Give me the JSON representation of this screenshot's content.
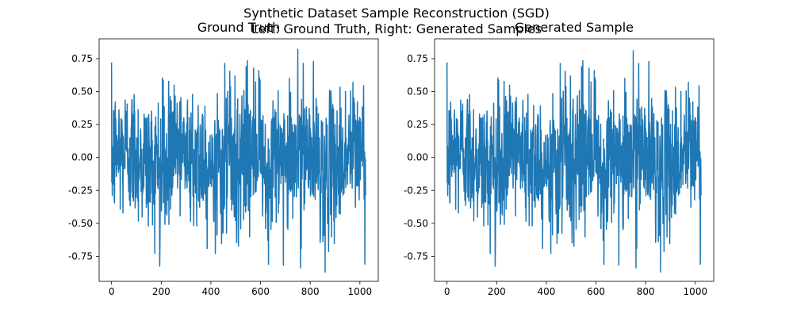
{
  "figure": {
    "suptitle_line1": "Synthetic Dataset Sample Reconstruction (SGD)",
    "suptitle_line2": "Left: Ground Truth, Right: Generated Samples"
  },
  "chart_data": [
    {
      "type": "line",
      "title": "Ground Truth",
      "xlabel": "",
      "ylabel": "",
      "x_ticks": [
        0,
        200,
        400,
        600,
        800,
        1000
      ],
      "y_ticks": [
        -0.75,
        -0.5,
        -0.25,
        0.0,
        0.25,
        0.5,
        0.75
      ],
      "xlim": [
        -50,
        1074
      ],
      "ylim": [
        -0.94,
        0.9
      ],
      "series_color": "#1f77b4",
      "x_range": [
        0,
        1023
      ],
      "n_points": 1024,
      "y_observed_min": -0.87,
      "y_observed_max": 0.82,
      "grid": false
    },
    {
      "type": "line",
      "title": "Generated Sample",
      "xlabel": "",
      "ylabel": "",
      "x_ticks": [
        0,
        200,
        400,
        600,
        800,
        1000
      ],
      "y_ticks": [
        -0.75,
        -0.5,
        -0.25,
        0.0,
        0.25,
        0.5,
        0.75
      ],
      "xlim": [
        -50,
        1074
      ],
      "ylim": [
        -0.94,
        0.9
      ],
      "series_color": "#1f77b4",
      "x_range": [
        0,
        1023
      ],
      "n_points": 1024,
      "y_observed_min": -0.87,
      "y_observed_max": 0.81,
      "grid": false
    }
  ]
}
